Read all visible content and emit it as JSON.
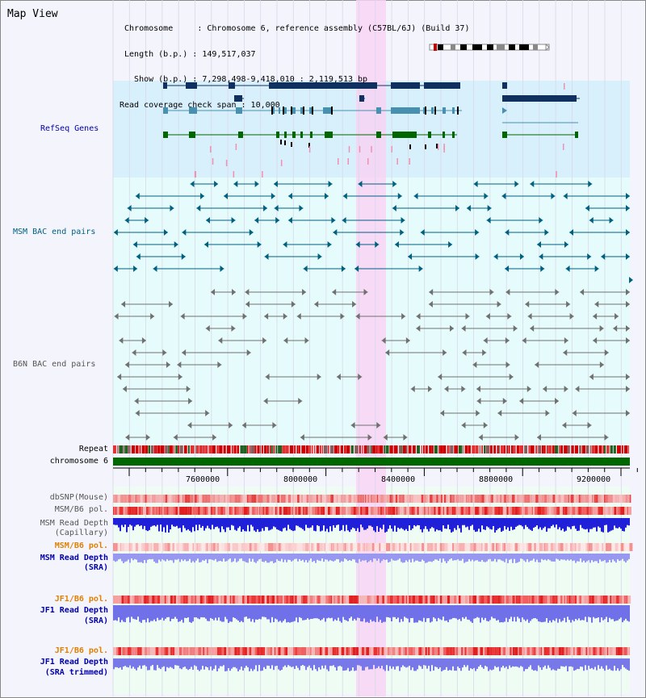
{
  "view": {
    "title": "Map View"
  },
  "info": {
    "line1": " Chromosome     : Chromosome 6, reference assembly (C57BL/6J) (Build 37)",
    "line2": " Length (b.p.) : 149,517,037",
    "line3": "   Show (b.p.) : 7,298,498-9,418,010 : 2,119,513 bp",
    "line4": "Read coverage check span : 10,000"
  },
  "tracks": {
    "refseq": "RefSeq Genes",
    "msm_bac": "MSM BAC end pairs",
    "b6n_bac": "B6N BAC end pairs",
    "repeat": "Repeat",
    "chromosome": "chromosome 6",
    "dbsnp": "dbSNP(Mouse)",
    "msm_b6_pol": "MSM/B6 pol.",
    "msm_depth_cap_1": "MSM Read Depth",
    "msm_depth_cap_2": "(Capillary)",
    "msm_b6_pol_sra": "MSM/B6 pol.",
    "msm_depth_sra_1": "MSM Read Depth",
    "msm_depth_sra_2": "(SRA)",
    "jf1_b6_pol_1": "JF1/B6 pol.",
    "jf1_depth_sra_1": "JF1 Read Depth",
    "jf1_depth_sra_2": "(SRA)",
    "jf1_b6_pol_2": "JF1/B6 pol.",
    "jf1_depth_trim_1": "JF1 Read Depth",
    "jf1_depth_trim_2": "(SRA trimmed)"
  },
  "axis": {
    "ticks": [
      "7600000",
      "8000000",
      "8400000",
      "8800000",
      "9200000"
    ]
  },
  "colors": {
    "refseq_bg": "#d8f0fc",
    "track_bg": "#e6fcfc",
    "highlight": "#f8d4f4",
    "label_navy": "#0000aa",
    "label_teal": "#006080",
    "label_gray": "#555555",
    "label_orange": "#e08000",
    "chromosome_green": "#006600"
  }
}
